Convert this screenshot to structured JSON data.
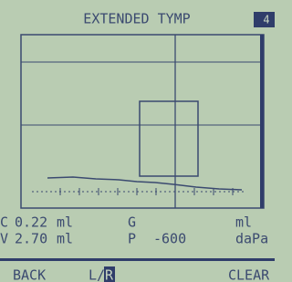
{
  "header": {
    "title": "EXTENDED TYMP",
    "badge": "4"
  },
  "readings": [
    {
      "label": "C",
      "value": "0.22",
      "unit": "ml",
      "label2": "G",
      "unit2": "ml"
    },
    {
      "label": "V",
      "value": "2.70",
      "unit": "ml",
      "label2": "P",
      "value2": "-600",
      "unit2": "daPa"
    }
  ],
  "softkeys": {
    "back": "BACK",
    "ear_left": "L/",
    "ear_right": "R",
    "clear": "CLEAR"
  }
}
